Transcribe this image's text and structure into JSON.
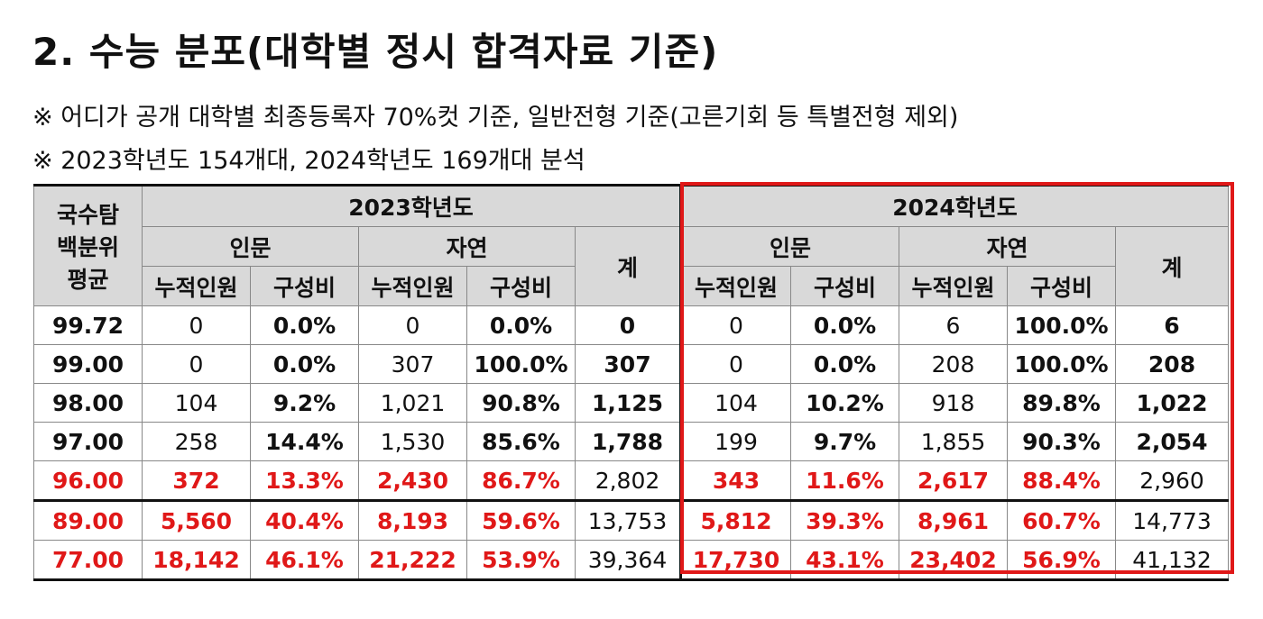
{
  "title": "2. 수능 분포(대학별 정시 합격자료 기준)",
  "notes": [
    "※ 어디가 공개 대학별 최종등록자 70%컷 기준, 일반전형 기준(고른기회 등 특별전형 제외)",
    "※ 2023학년도 154개대, 2024학년도 169개대 분석"
  ],
  "table": {
    "score_header": [
      "국수탐",
      "백분위",
      "평균"
    ],
    "years": [
      "2023학년도",
      "2024학년도"
    ],
    "groups": [
      "인문",
      "자연",
      "계"
    ],
    "subcols": [
      "누적인원",
      "구성비"
    ],
    "rows": [
      {
        "score": "99.72",
        "y2023": [
          "0",
          "0.0%",
          "0",
          "0.0%",
          "0"
        ],
        "y2024": [
          "0",
          "0.0%",
          "6",
          "100.0%",
          "6"
        ]
      },
      {
        "score": "99.00",
        "y2023": [
          "0",
          "0.0%",
          "307",
          "100.0%",
          "307"
        ],
        "y2024": [
          "0",
          "0.0%",
          "208",
          "100.0%",
          "208"
        ]
      },
      {
        "score": "98.00",
        "y2023": [
          "104",
          "9.2%",
          "1,021",
          "90.8%",
          "1,125"
        ],
        "y2024": [
          "104",
          "10.2%",
          "918",
          "89.8%",
          "1,022"
        ]
      },
      {
        "score": "97.00",
        "y2023": [
          "258",
          "14.4%",
          "1,530",
          "85.6%",
          "1,788"
        ],
        "y2024": [
          "199",
          "9.7%",
          "1,855",
          "90.3%",
          "2,054"
        ]
      },
      {
        "score": "96.00",
        "y2023": [
          "372",
          "13.3%",
          "2,430",
          "86.7%",
          "2,802"
        ],
        "y2024": [
          "343",
          "11.6%",
          "2,617",
          "88.4%",
          "2,960"
        ]
      },
      {
        "score": "89.00",
        "y2023": [
          "5,560",
          "40.4%",
          "8,193",
          "59.6%",
          "13,753"
        ],
        "y2024": [
          "5,812",
          "39.3%",
          "8,961",
          "60.7%",
          "14,773"
        ]
      },
      {
        "score": "77.00",
        "y2023": [
          "18,142",
          "46.1%",
          "21,222",
          "53.9%",
          "39,364"
        ],
        "y2024": [
          "17,730",
          "43.1%",
          "23,402",
          "56.9%",
          "41,132"
        ]
      }
    ]
  },
  "colors": {
    "highlight_red": "#e01818",
    "header_gray": "#d9d9d9"
  }
}
